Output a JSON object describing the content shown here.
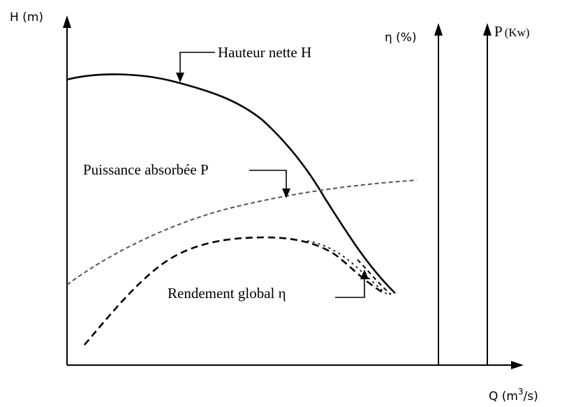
{
  "axes": {
    "y_left_label": "H (m)",
    "y_eta_label": "η (%)",
    "y_power_label_main": "P",
    "y_power_label_unit": "(Kw)",
    "x_label_prefix": "Q (m",
    "x_label_exponent": "3",
    "x_label_suffix": "/s)"
  },
  "curves": {
    "head_label": "Hauteur nette H",
    "power_label": "Puissance absorbée P",
    "efficiency_label": "Rendement global η"
  },
  "colors": {
    "line": "#000000",
    "power_curve": "#555555"
  }
}
